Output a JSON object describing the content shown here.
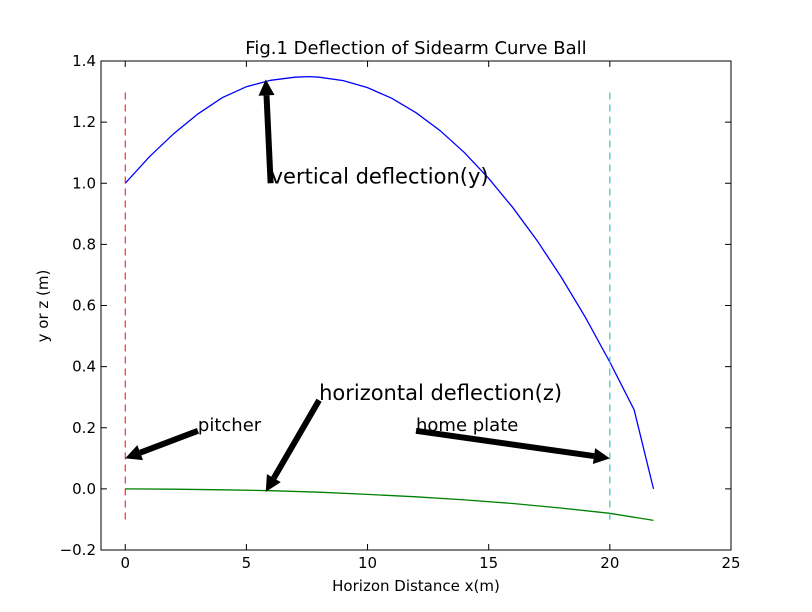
{
  "chart_data": {
    "type": "line",
    "title": "Fig.1 Deflection of Sidearm Curve Ball",
    "xlabel": "Horizon Distance x(m)",
    "ylabel": "y or z (m)",
    "xlim": [
      -1,
      25
    ],
    "ylim": [
      -0.2,
      1.4
    ],
    "xticks": [
      "0",
      "5",
      "10",
      "15",
      "20",
      "25"
    ],
    "xtick_values": [
      0,
      5,
      10,
      15,
      20,
      25
    ],
    "yticks": [
      "−0.2",
      "0.0",
      "0.2",
      "0.4",
      "0.6",
      "0.8",
      "1.0",
      "1.2",
      "1.4"
    ],
    "ytick_values": [
      -0.2,
      0.0,
      0.2,
      0.4,
      0.6,
      0.8,
      1.0,
      1.2,
      1.4
    ],
    "grid": false,
    "series": [
      {
        "color": "#0000ff",
        "x": [
          0,
          1,
          2,
          3,
          4,
          5,
          6,
          7,
          7.6,
          8,
          9,
          10,
          11,
          12,
          13,
          14,
          15,
          16,
          17,
          18,
          19,
          20,
          21,
          21.8
        ],
        "y": [
          1.0,
          1.087,
          1.162,
          1.227,
          1.28,
          1.316,
          1.337,
          1.347,
          1.349,
          1.347,
          1.336,
          1.313,
          1.278,
          1.231,
          1.172,
          1.1,
          1.016,
          0.92,
          0.812,
          0.692,
          0.56,
          0.415,
          0.259,
          0.0
        ]
      },
      {
        "color": "#008000",
        "x": [
          0,
          2,
          4,
          6,
          8,
          10,
          12,
          14,
          16,
          18,
          20,
          21.8
        ],
        "y": [
          0.0,
          -0.001,
          -0.003,
          -0.006,
          -0.011,
          -0.018,
          -0.026,
          -0.036,
          -0.048,
          -0.063,
          -0.08,
          -0.103
        ]
      }
    ],
    "vlines": [
      {
        "x": 0,
        "ymin": -0.1,
        "ymax": 1.3,
        "color": "#ff0000"
      },
      {
        "x": 20,
        "ymin": -0.1,
        "ymax": 1.3,
        "color": "#00bfbf"
      }
    ],
    "annotations": [
      {
        "text": "vertical deflection(y)",
        "text_x": 6,
        "text_y": 1.0,
        "arrow_x": 5.8,
        "arrow_y": 1.34,
        "size": "large"
      },
      {
        "text": "horizontal deflection(z)",
        "text_x": 8,
        "text_y": 0.29,
        "arrow_x": 5.8,
        "arrow_y": -0.01,
        "size": "large"
      },
      {
        "text": "pitcher",
        "text_x": 3,
        "text_y": 0.19,
        "arrow_x": 0,
        "arrow_y": 0.1,
        "size": "medium"
      },
      {
        "text": "home plate",
        "text_x": 12,
        "text_y": 0.19,
        "arrow_x": 20,
        "arrow_y": 0.1,
        "size": "medium"
      }
    ]
  }
}
